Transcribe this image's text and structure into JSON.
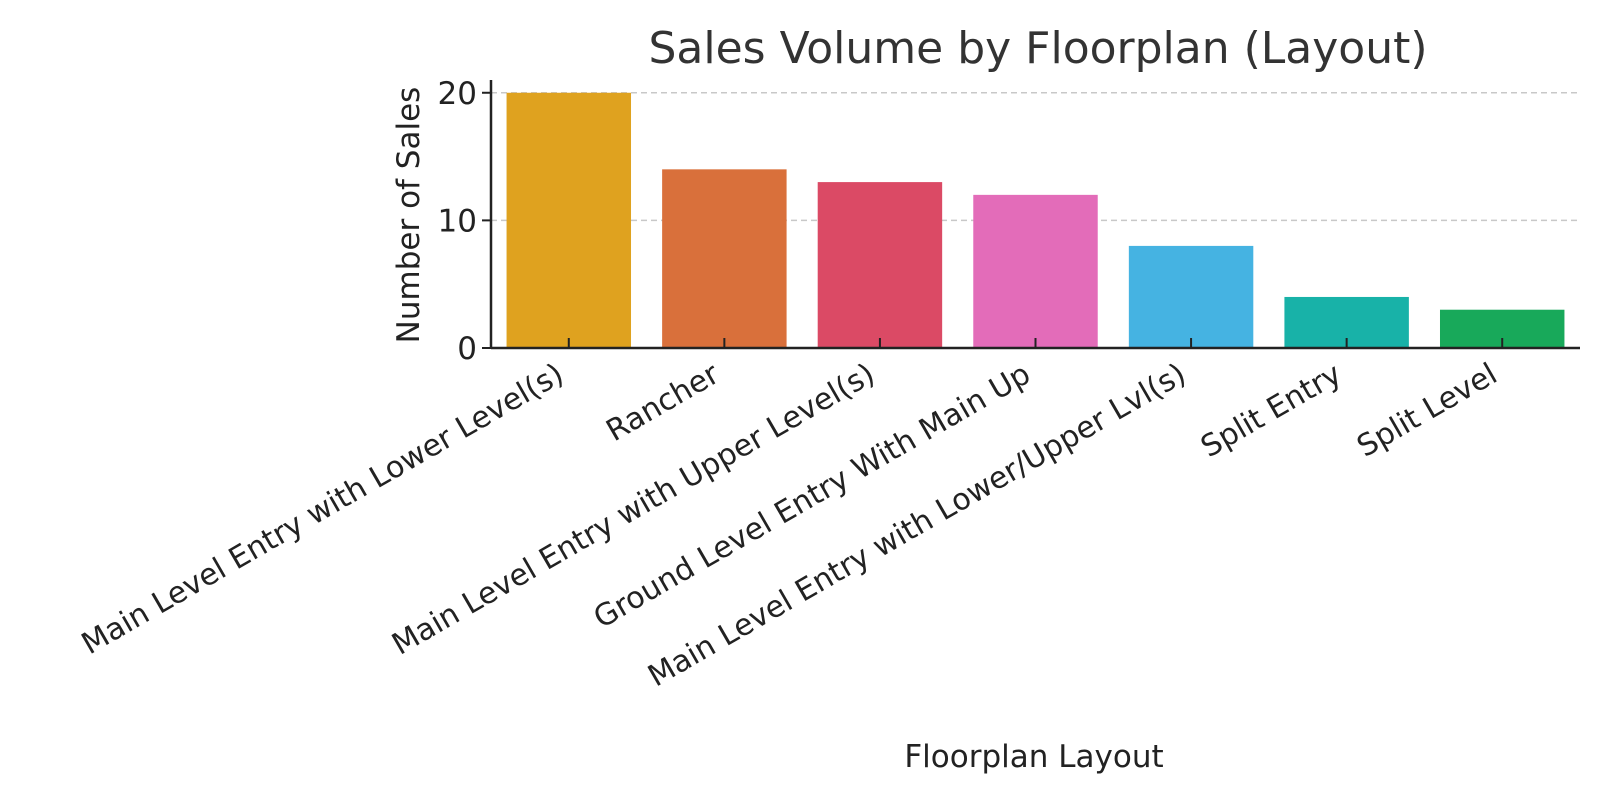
{
  "chart_data": {
    "type": "bar",
    "title": "Sales Volume by Floorplan (Layout)",
    "xlabel": "Floorplan Layout",
    "ylabel": "Number of Sales",
    "categories": [
      "Main Level Entry with Lower Level(s)",
      "Rancher",
      "Main Level Entry with Upper Level(s)",
      "Ground Level Entry With Main Up",
      "Main Level Entry with Lower/Upper Lvl(s)",
      "Split Entry",
      "Split Level"
    ],
    "values": [
      20,
      14,
      13,
      12,
      8,
      4,
      3
    ],
    "colors": [
      "#DFA21F",
      "#D9703B",
      "#DB4A65",
      "#E36CB9",
      "#45B3E2",
      "#18B2A8",
      "#18A95A"
    ],
    "ylim": [
      0,
      21
    ],
    "yticks": [
      0,
      10,
      20
    ],
    "grid": "horizontal-dashed",
    "legend": "none"
  }
}
